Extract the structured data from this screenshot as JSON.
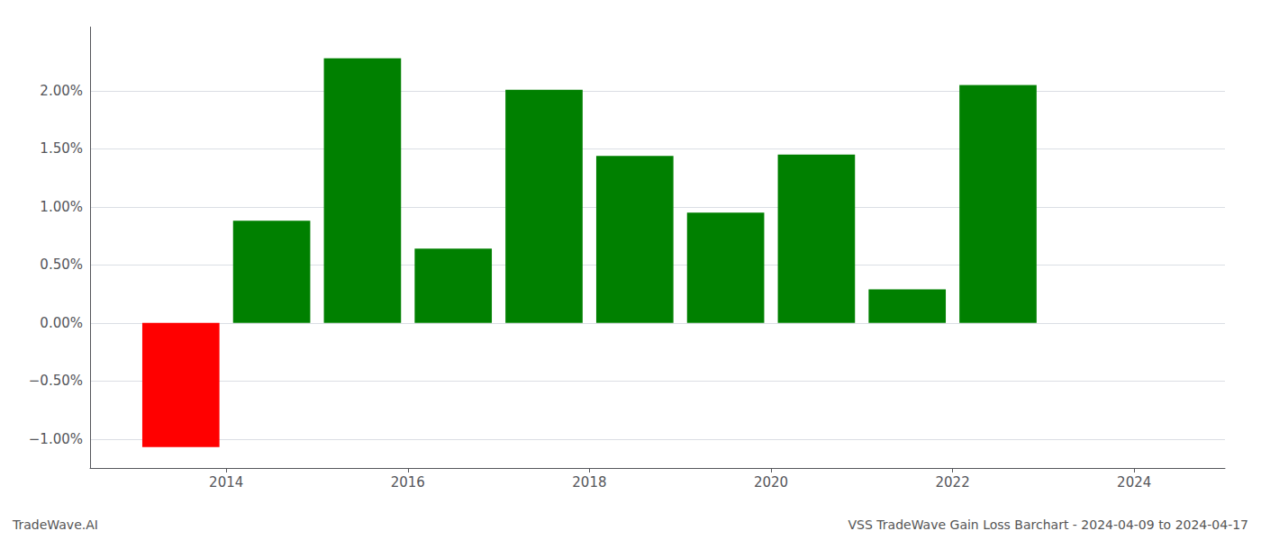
{
  "chart_data": {
    "type": "bar",
    "x": [
      2013.5,
      2014.5,
      2015.5,
      2016.5,
      2017.5,
      2018.5,
      2019.5,
      2020.5,
      2021.5,
      2022.5,
      2023.5
    ],
    "values": [
      -1.07,
      0.88,
      2.28,
      0.64,
      2.01,
      1.44,
      0.95,
      1.45,
      0.29,
      2.05,
      0.0
    ],
    "colors": [
      "#ff0000",
      "#008000",
      "#008000",
      "#008000",
      "#008000",
      "#008000",
      "#008000",
      "#008000",
      "#008000",
      "#008000",
      "#008000"
    ],
    "xlim": [
      2012.5,
      2025.0
    ],
    "xticks": [
      2014,
      2016,
      2018,
      2020,
      2022,
      2024
    ],
    "ylim": [
      -1.25,
      2.55
    ],
    "yticks": [
      {
        "value": -1.0,
        "label": "−1.00%"
      },
      {
        "value": -0.5,
        "label": "−0.50%"
      },
      {
        "value": 0.0,
        "label": "0.00%"
      },
      {
        "value": 0.5,
        "label": "0.50%"
      },
      {
        "value": 1.0,
        "label": "1.00%"
      },
      {
        "value": 1.5,
        "label": "1.50%"
      },
      {
        "value": 2.0,
        "label": "2.00%"
      }
    ],
    "grid": true,
    "annotations": [
      "TradeWave.AI",
      "VSS TradeWave Gain Loss Barchart - 2024-04-09 to 2024-04-17"
    ]
  }
}
